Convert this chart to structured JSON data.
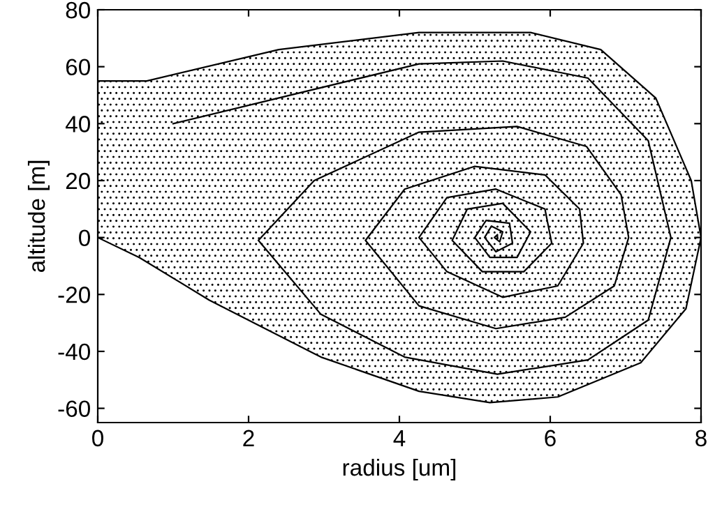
{
  "chart_data": {
    "type": "line",
    "xlabel": "radius [um]",
    "ylabel": "altitude [m]",
    "xlim": [
      0,
      8
    ],
    "ylim": [
      -65,
      80
    ],
    "xticks": [
      0,
      2,
      4,
      6,
      8
    ],
    "yticks": [
      -60,
      -40,
      -20,
      0,
      20,
      40,
      60,
      80
    ],
    "grid": false,
    "legend": false,
    "marker": "none",
    "line_style": "solid",
    "series": [
      {
        "type": "area",
        "color": "#000000",
        "x": [
          0,
          0,
          0.65,
          2.4,
          4.26,
          5.74,
          6.67,
          7.4,
          7.87,
          8,
          7.8,
          7.2,
          6.1,
          5.2,
          4.26,
          2.96,
          1.48,
          0.55,
          0
        ],
        "values": [
          0,
          55,
          55,
          66,
          72,
          72,
          66,
          49,
          20,
          0,
          -25,
          -44,
          -56,
          -58,
          -54,
          -42,
          -22,
          -7,
          0
        ]
      },
      {
        "color": "#000000",
        "x": [
          1,
          4.26,
          5.37,
          6.5,
          7.3,
          7.6,
          7.3,
          6.5,
          5.3,
          4.07,
          2.96,
          2.13,
          2.87,
          4.26,
          5.56,
          6.48,
          6.94,
          7.04,
          6.85,
          6.2,
          5.28,
          4.26,
          3.55,
          4.07,
          5,
          5.93,
          6.39,
          6.44,
          6.1,
          5.37,
          4.63,
          4.26,
          4.63,
          5.28,
          5.93,
          6.02,
          5.65,
          5.1,
          4.7,
          4.9,
          5.37,
          5.74,
          5.56,
          5.2,
          5.0,
          5.15,
          5.46,
          5.5,
          5.28,
          5.13,
          5.22,
          5.37,
          5.33,
          5.26,
          5.3,
          5.3
        ],
        "values": [
          40,
          61,
          62,
          56,
          34,
          0,
          -29,
          -43,
          -48,
          -42,
          -27,
          -1,
          20,
          37,
          39,
          32,
          15,
          0,
          -17,
          -28,
          -32,
          -24,
          -1,
          17,
          25,
          22,
          10,
          -2,
          -17,
          -21,
          -12,
          0,
          14,
          17,
          10,
          -2,
          -12,
          -12,
          -1,
          10,
          12,
          2,
          -7,
          -7,
          0,
          6,
          5,
          -2,
          -5,
          0,
          4,
          2,
          -1.5,
          0,
          1,
          0
        ]
      }
    ]
  }
}
